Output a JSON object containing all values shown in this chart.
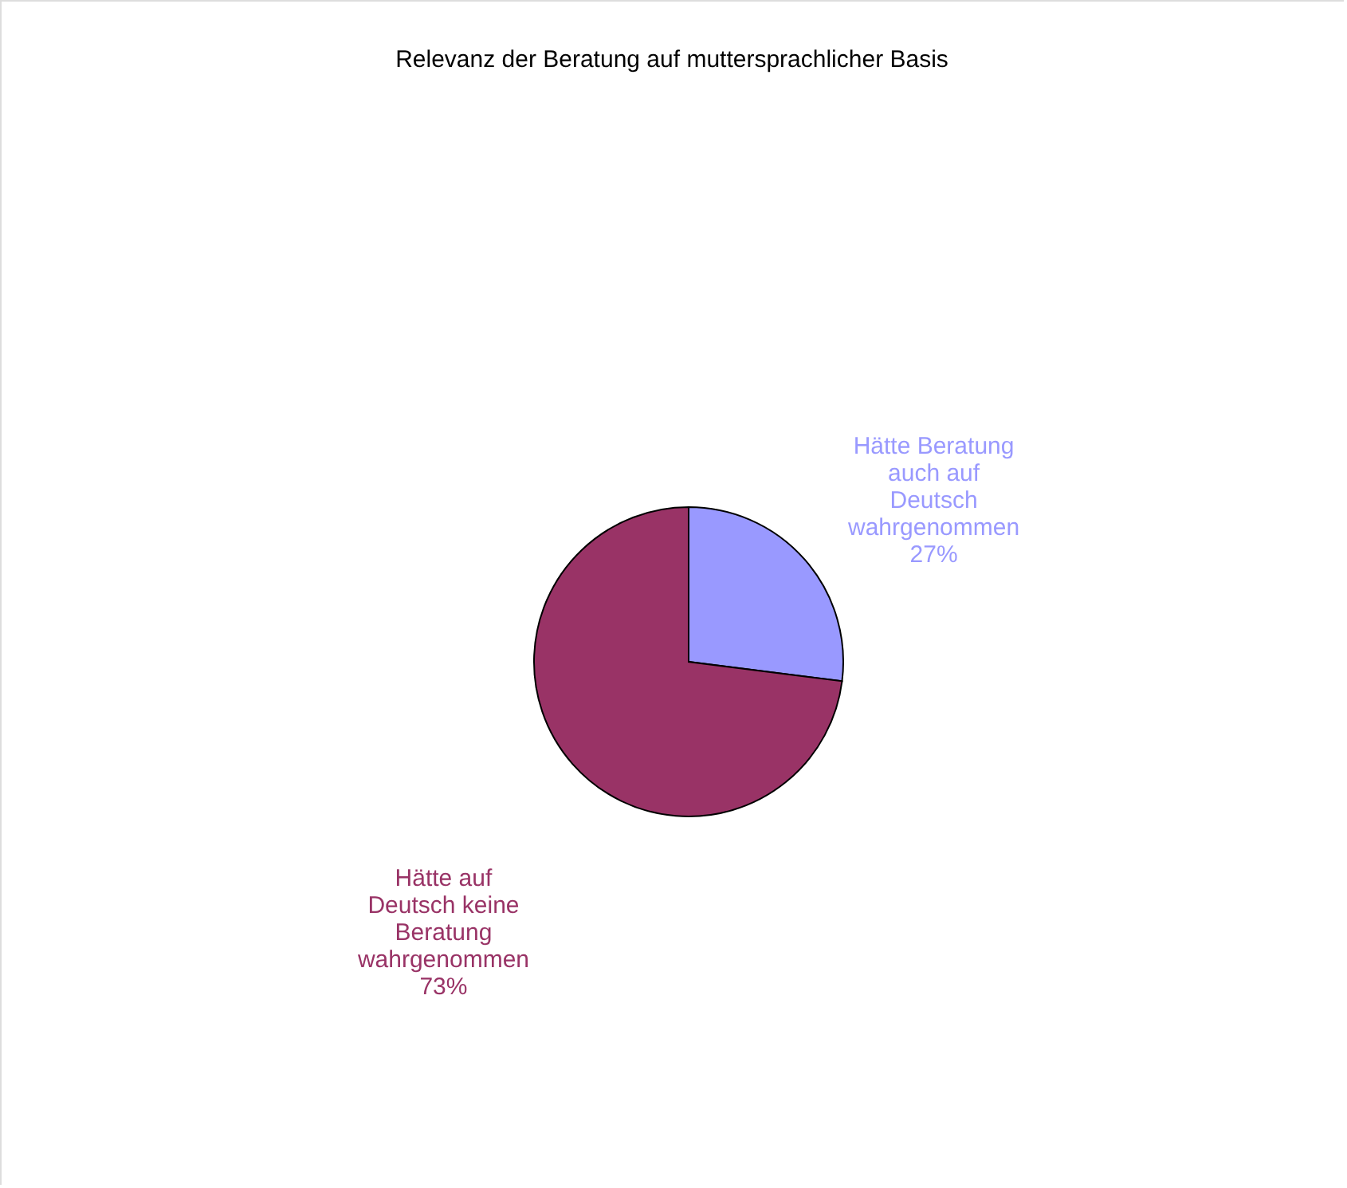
{
  "chart_data": {
    "type": "pie",
    "title": "Relevanz der Beratung auf muttersprachlicher Basis",
    "categories": [
      "Hätte Beratung auch auf Deutsch wahrgenommen",
      "Hätte auf Deutsch keine Beratung wahrgenommen"
    ],
    "values": [
      27,
      73
    ],
    "value_labels": [
      "27%",
      "73%"
    ],
    "colors": [
      "#9999ff",
      "#993366"
    ]
  }
}
